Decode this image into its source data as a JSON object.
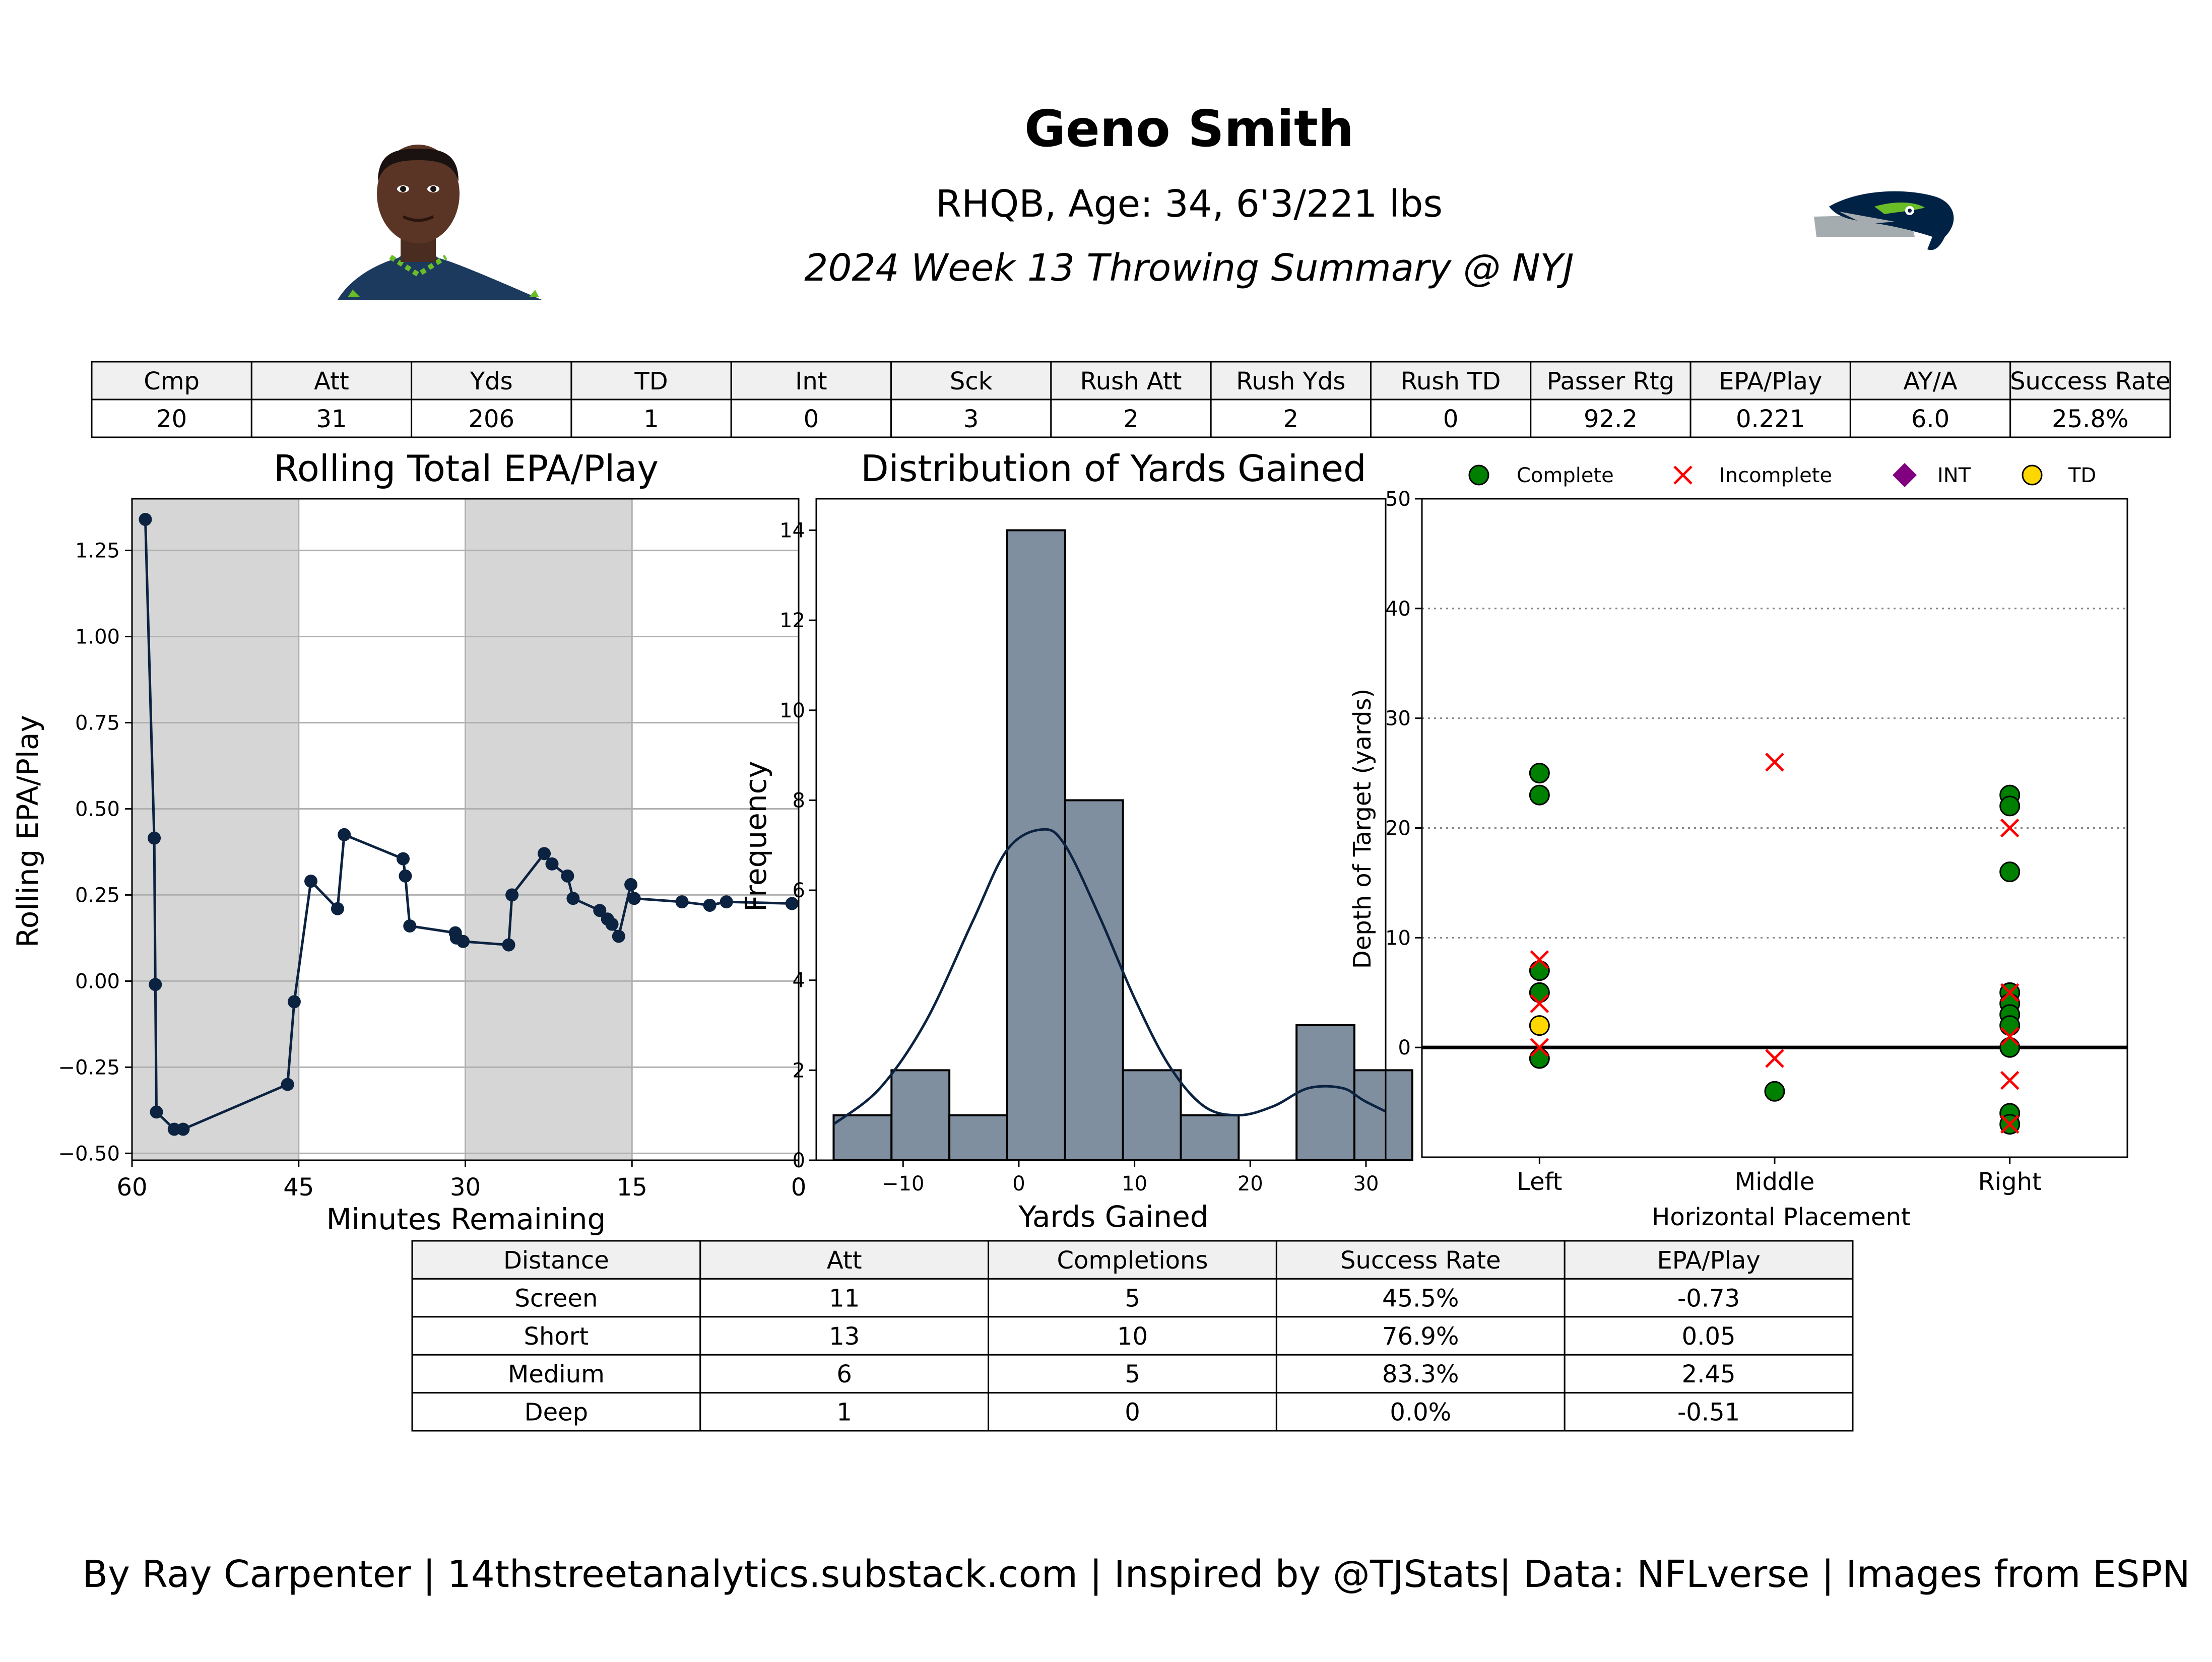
{
  "header": {
    "player_name": "Geno Smith",
    "bio": "RHQB, Age: 34, 6'3/221 lbs",
    "subtitle": "2024 Week 13 Throwing Summary @ NYJ"
  },
  "colors": {
    "line": "#0b2240",
    "hist_fill": "#7f8fa0",
    "shade": "#d6d6d6",
    "complete": "#008000",
    "incomplete": "#ff0000",
    "int": "#800080",
    "td": "#ffd700",
    "seahawks_navy": "#002244",
    "seahawks_green": "#69be28",
    "seahawks_grey": "#a5acaf"
  },
  "stats_table": {
    "headers": [
      "Cmp",
      "Att",
      "Yds",
      "TD",
      "Int",
      "Sck",
      "Rush Att",
      "Rush Yds",
      "Rush TD",
      "Passer Rtg",
      "EPA/Play",
      "AY/A",
      "Success Rate"
    ],
    "values": [
      "20",
      "31",
      "206",
      "1",
      "0",
      "3",
      "2",
      "2",
      "0",
      "92.2",
      "0.221",
      "6.0",
      "25.8%"
    ]
  },
  "depth_table": {
    "headers": [
      "Distance",
      "Att",
      "Completions",
      "Success Rate",
      "EPA/Play"
    ],
    "rows": [
      [
        "Screen",
        "11",
        "5",
        "45.5%",
        "-0.73"
      ],
      [
        "Short",
        "13",
        "10",
        "76.9%",
        "0.05"
      ],
      [
        "Medium",
        "6",
        "5",
        "83.3%",
        "2.45"
      ],
      [
        "Deep",
        "1",
        "0",
        "0.0%",
        "-0.51"
      ]
    ]
  },
  "footer": "By Ray Carpenter | 14thstreetanalytics.substack.com | Inspired by @TJStats| Data: NFLverse | Images from ESPN",
  "chart_data": [
    {
      "type": "line",
      "title": "Rolling Total EPA/Play",
      "xlabel": "Minutes Remaining",
      "ylabel": "Rolling EPA/Play",
      "xlim": [
        60,
        0
      ],
      "ylim": [
        -0.52,
        1.4
      ],
      "xticks": [
        60,
        45,
        30,
        15,
        0
      ],
      "yticks": [
        -0.5,
        -0.25,
        0.0,
        0.25,
        0.5,
        0.75,
        1.0,
        1.25
      ],
      "ytick_labels": [
        "−0.50",
        "−0.25",
        "0.00",
        "0.25",
        "0.50",
        "0.75",
        "1.00",
        "1.25"
      ],
      "shaded_quarters": [
        [
          60,
          45
        ],
        [
          30,
          15
        ]
      ],
      "grid": true,
      "x": [
        58.8,
        58.0,
        57.9,
        57.8,
        56.2,
        55.4,
        46.0,
        45.4,
        43.9,
        41.5,
        40.9,
        35.6,
        35.4,
        35.0,
        30.9,
        30.8,
        30.2,
        26.1,
        25.8,
        22.9,
        22.2,
        20.8,
        20.3,
        17.9,
        17.2,
        16.8,
        16.2,
        15.1,
        14.8,
        10.5,
        8.0,
        6.5,
        0.6
      ],
      "y": [
        1.34,
        0.415,
        -0.01,
        -0.38,
        -0.43,
        -0.43,
        -0.3,
        -0.06,
        0.29,
        0.21,
        0.425,
        0.355,
        0.305,
        0.16,
        0.14,
        0.125,
        0.115,
        0.105,
        0.25,
        0.37,
        0.34,
        0.305,
        0.24,
        0.205,
        0.18,
        0.165,
        0.13,
        0.28,
        0.24,
        0.23,
        0.22,
        0.23,
        0.225
      ]
    },
    {
      "type": "bar",
      "title": "Distribution of Yards Gained",
      "xlabel": "Yards Gained",
      "ylabel": "Frequency",
      "xlim": [
        -17.5,
        31.7
      ],
      "ylim": [
        0,
        14.7
      ],
      "xticks": [
        -10,
        0,
        10,
        20,
        30
      ],
      "xtick_labels": [
        "−10",
        "0",
        "10",
        "20",
        "30"
      ],
      "yticks": [
        0,
        2,
        4,
        6,
        8,
        10,
        12,
        14
      ],
      "bin_edges": [
        -16,
        -11,
        -6,
        -1,
        4,
        9,
        14,
        19,
        24,
        29,
        34
      ],
      "counts": [
        1,
        2,
        1,
        14,
        8,
        2,
        1,
        0,
        3,
        2
      ],
      "kde": {
        "x": [
          -16,
          -12,
          -8,
          -4,
          -1,
          2,
          4,
          7,
          10,
          13,
          16,
          19,
          22,
          25,
          28,
          30,
          34
        ],
        "y": [
          0.8,
          1.6,
          3.1,
          5.3,
          6.9,
          7.35,
          7.0,
          5.4,
          3.6,
          2.1,
          1.2,
          1.0,
          1.2,
          1.6,
          1.6,
          1.3,
          0.8
        ]
      }
    },
    {
      "type": "scatter",
      "xlabel": "Horizontal Placement",
      "ylabel": "Depth of Target (yards)",
      "categories": [
        "Left",
        "Middle",
        "Right"
      ],
      "xlim": [
        -0.5,
        2.5
      ],
      "ylim": [
        -10,
        50
      ],
      "yticks": [
        0,
        10,
        20,
        30,
        40,
        50
      ],
      "grid_lines": [
        10,
        20,
        30,
        40
      ],
      "legend": [
        {
          "label": "Complete",
          "marker": "circle",
          "color": "#008000"
        },
        {
          "label": "Incomplete",
          "marker": "x",
          "color": "#ff0000"
        },
        {
          "label": "INT",
          "marker": "diamond",
          "color": "#800080"
        },
        {
          "label": "TD",
          "marker": "circle",
          "color": "#ffd700"
        }
      ],
      "points": [
        {
          "x": 0,
          "y": 25,
          "result": "complete"
        },
        {
          "x": 0,
          "y": 23,
          "result": "complete"
        },
        {
          "x": 0,
          "y": 7,
          "result": "complete"
        },
        {
          "x": 0,
          "y": 5,
          "result": "complete"
        },
        {
          "x": 0,
          "y": -1,
          "result": "complete"
        },
        {
          "x": 0,
          "y": 8,
          "result": "incomplete"
        },
        {
          "x": 0,
          "y": 4,
          "result": "incomplete"
        },
        {
          "x": 0,
          "y": 0,
          "result": "incomplete"
        },
        {
          "x": 0,
          "y": 2,
          "result": "td"
        },
        {
          "x": 1,
          "y": 26,
          "result": "incomplete"
        },
        {
          "x": 1,
          "y": -1,
          "result": "incomplete"
        },
        {
          "x": 1,
          "y": -4,
          "result": "complete"
        },
        {
          "x": 2,
          "y": 23,
          "result": "complete"
        },
        {
          "x": 2,
          "y": 22,
          "result": "complete"
        },
        {
          "x": 2,
          "y": 16,
          "result": "complete"
        },
        {
          "x": 2,
          "y": 5,
          "result": "complete"
        },
        {
          "x": 2,
          "y": 4,
          "result": "complete"
        },
        {
          "x": 2,
          "y": 3,
          "result": "complete"
        },
        {
          "x": 2,
          "y": 2,
          "result": "complete"
        },
        {
          "x": 2,
          "y": 0,
          "result": "complete"
        },
        {
          "x": 2,
          "y": -6,
          "result": "complete"
        },
        {
          "x": 2,
          "y": -7,
          "result": "complete"
        },
        {
          "x": 2,
          "y": 20,
          "result": "incomplete"
        },
        {
          "x": 2,
          "y": 5,
          "result": "incomplete"
        },
        {
          "x": 2,
          "y": 1,
          "result": "incomplete"
        },
        {
          "x": 2,
          "y": -3,
          "result": "incomplete"
        },
        {
          "x": 2,
          "y": -7,
          "result": "incomplete"
        }
      ]
    }
  ]
}
